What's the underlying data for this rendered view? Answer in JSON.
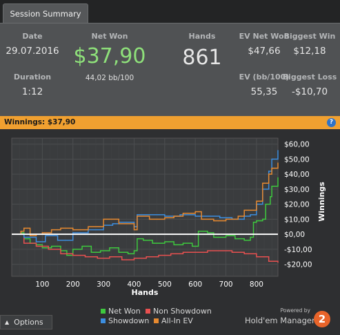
{
  "tab": {
    "label": "Session Summary"
  },
  "summary": {
    "date_label": "Date",
    "date_value": "29.07.2016",
    "duration_label": "Duration",
    "duration_value": "1:12",
    "netwon_label": "Net Won",
    "netwon_value": "$37,90",
    "netwon_sub": "44,02 bb/100",
    "hands_label": "Hands",
    "hands_value": "861",
    "evnet_label": "EV Net Won",
    "evnet_value": "$47,66",
    "evbb_label": "EV (bb/100)",
    "evbb_value": "55,35",
    "bigwin_label": "Biggest Win",
    "bigwin_value": "$12,18",
    "bigloss_label": "Biggest Loss",
    "bigloss_value": "-$10,70"
  },
  "winnings_bar": {
    "label": "Winnings:",
    "value": "$37,90",
    "help": "?"
  },
  "chart_data": {
    "type": "line",
    "xlabel": "Hands",
    "ylabel": "Winnings",
    "xlim": [
      0,
      870
    ],
    "ylim": [
      -28,
      64
    ],
    "x_ticks": [
      100,
      200,
      300,
      400,
      500,
      600,
      700,
      800
    ],
    "y_ticks": [
      {
        "v": 60,
        "label": "$60,00"
      },
      {
        "v": 50,
        "label": "$50,00"
      },
      {
        "v": 40,
        "label": "$40,00"
      },
      {
        "v": 30,
        "label": "$30,00"
      },
      {
        "v": 20,
        "label": "$20,00"
      },
      {
        "v": 10,
        "label": "$10,00"
      },
      {
        "v": 0,
        "label": "$0,00"
      },
      {
        "v": -10,
        "label": "-$10,00"
      },
      {
        "v": -20,
        "label": "-$20,00"
      }
    ],
    "grid": true,
    "legend_position": "bottom",
    "series": [
      {
        "name": "Net Won",
        "color": "#3ec93e",
        "points": [
          [
            0,
            0
          ],
          [
            30,
            1
          ],
          [
            40,
            -3
          ],
          [
            60,
            -6
          ],
          [
            80,
            -7
          ],
          [
            100,
            -9
          ],
          [
            130,
            -8
          ],
          [
            160,
            -11
          ],
          [
            180,
            -14
          ],
          [
            200,
            -10
          ],
          [
            230,
            -8
          ],
          [
            260,
            -12
          ],
          [
            290,
            -11
          ],
          [
            320,
            -9
          ],
          [
            350,
            -12
          ],
          [
            380,
            -13
          ],
          [
            400,
            -11
          ],
          [
            410,
            -3
          ],
          [
            430,
            -4
          ],
          [
            460,
            -6
          ],
          [
            500,
            -5
          ],
          [
            530,
            -7
          ],
          [
            560,
            -6
          ],
          [
            590,
            -8
          ],
          [
            610,
            2
          ],
          [
            640,
            1
          ],
          [
            660,
            -2
          ],
          [
            700,
            -1
          ],
          [
            730,
            -3
          ],
          [
            760,
            -4
          ],
          [
            780,
            -2
          ],
          [
            790,
            8
          ],
          [
            800,
            9
          ],
          [
            820,
            10
          ],
          [
            830,
            20
          ],
          [
            845,
            25
          ],
          [
            850,
            32
          ],
          [
            870,
            37.9
          ]
        ]
      },
      {
        "name": "Non Showdown",
        "color": "#e85050",
        "points": [
          [
            0,
            0
          ],
          [
            40,
            -6
          ],
          [
            80,
            -8
          ],
          [
            120,
            -10
          ],
          [
            160,
            -13
          ],
          [
            200,
            -14
          ],
          [
            240,
            -15
          ],
          [
            280,
            -16
          ],
          [
            320,
            -15
          ],
          [
            360,
            -17
          ],
          [
            400,
            -16
          ],
          [
            440,
            -15
          ],
          [
            480,
            -14
          ],
          [
            520,
            -13
          ],
          [
            560,
            -12
          ],
          [
            600,
            -12
          ],
          [
            640,
            -11
          ],
          [
            680,
            -11
          ],
          [
            720,
            -12
          ],
          [
            760,
            -13
          ],
          [
            800,
            -15
          ],
          [
            840,
            -18
          ],
          [
            870,
            -19
          ]
        ]
      },
      {
        "name": "Showdown",
        "color": "#3c8ee0",
        "points": [
          [
            0,
            0
          ],
          [
            40,
            -2
          ],
          [
            80,
            -5
          ],
          [
            110,
            -1
          ],
          [
            150,
            -4
          ],
          [
            200,
            1
          ],
          [
            250,
            3
          ],
          [
            300,
            6
          ],
          [
            330,
            7
          ],
          [
            350,
            8
          ],
          [
            400,
            5
          ],
          [
            410,
            13
          ],
          [
            450,
            13
          ],
          [
            500,
            12
          ],
          [
            550,
            13
          ],
          [
            600,
            12
          ],
          [
            640,
            12
          ],
          [
            680,
            11
          ],
          [
            720,
            10
          ],
          [
            760,
            12
          ],
          [
            780,
            13
          ],
          [
            800,
            20
          ],
          [
            820,
            30
          ],
          [
            840,
            42
          ],
          [
            850,
            50
          ],
          [
            860,
            50
          ],
          [
            870,
            56
          ]
        ]
      },
      {
        "name": "All-In EV",
        "color": "#e88a30",
        "points": [
          [
            0,
            0
          ],
          [
            30,
            2
          ],
          [
            40,
            4
          ],
          [
            60,
            -1
          ],
          [
            80,
            0
          ],
          [
            100,
            1
          ],
          [
            130,
            3
          ],
          [
            160,
            4
          ],
          [
            200,
            3
          ],
          [
            250,
            5
          ],
          [
            300,
            10
          ],
          [
            350,
            7
          ],
          [
            400,
            3
          ],
          [
            410,
            12
          ],
          [
            450,
            10
          ],
          [
            500,
            11
          ],
          [
            530,
            12
          ],
          [
            560,
            14
          ],
          [
            600,
            15
          ],
          [
            620,
            10
          ],
          [
            660,
            9
          ],
          [
            700,
            10
          ],
          [
            740,
            12
          ],
          [
            760,
            16
          ],
          [
            780,
            16
          ],
          [
            800,
            22
          ],
          [
            820,
            34
          ],
          [
            840,
            40
          ],
          [
            850,
            44
          ],
          [
            870,
            47.66
          ]
        ]
      }
    ]
  },
  "legend": {
    "net_won": "Net Won",
    "non_showdown": "Non Showdown",
    "showdown": "Showdown",
    "allin_ev": "All-In EV"
  },
  "footer": {
    "options_label": "Options",
    "options_icon": "chevron-up-icon",
    "powered_by": "Powered by",
    "brand": "Hold'em Manager",
    "logo_text": "2"
  }
}
